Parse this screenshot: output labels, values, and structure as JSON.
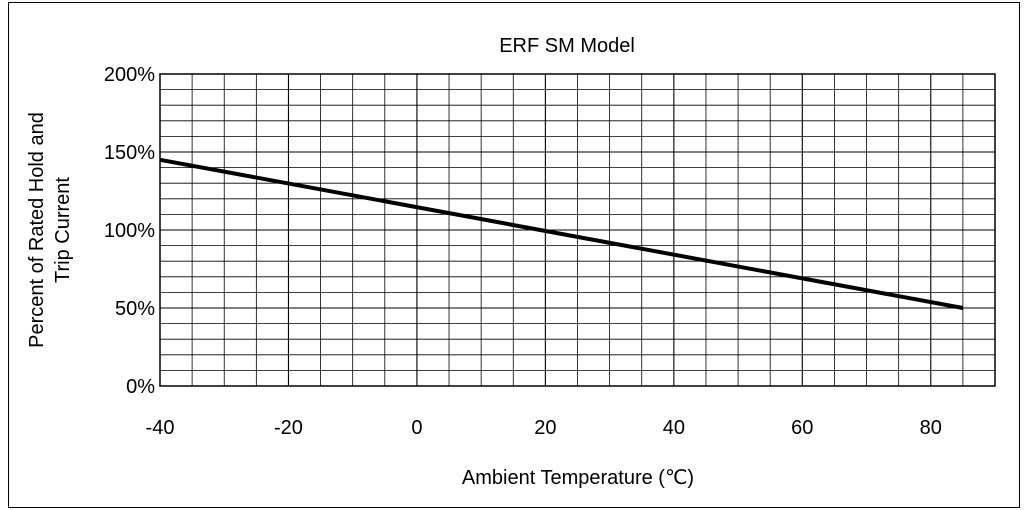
{
  "chart_data": {
    "type": "line",
    "title": "ERF SM Model",
    "xlabel": "Ambient Temperature (℃)",
    "ylabel": [
      "Percent of Rated Hold and",
      "Trip Current"
    ],
    "xlim": [
      -40,
      90
    ],
    "ylim": [
      0,
      200
    ],
    "x_ticks": [
      -40,
      -20,
      0,
      20,
      40,
      60,
      80
    ],
    "x_tick_labels": [
      "-40",
      "-20",
      "0",
      "20",
      "40",
      "60",
      "80"
    ],
    "y_ticks": [
      0,
      50,
      100,
      150,
      200
    ],
    "y_tick_labels": [
      "0%",
      "50%",
      "100%",
      "150%",
      "200%"
    ],
    "x_minor_step": 5,
    "y_minor_step": 10,
    "grid": true,
    "series": [
      {
        "x": [
          -40,
          85
        ],
        "y": [
          145,
          50
        ]
      }
    ],
    "line_color": "#000000"
  }
}
